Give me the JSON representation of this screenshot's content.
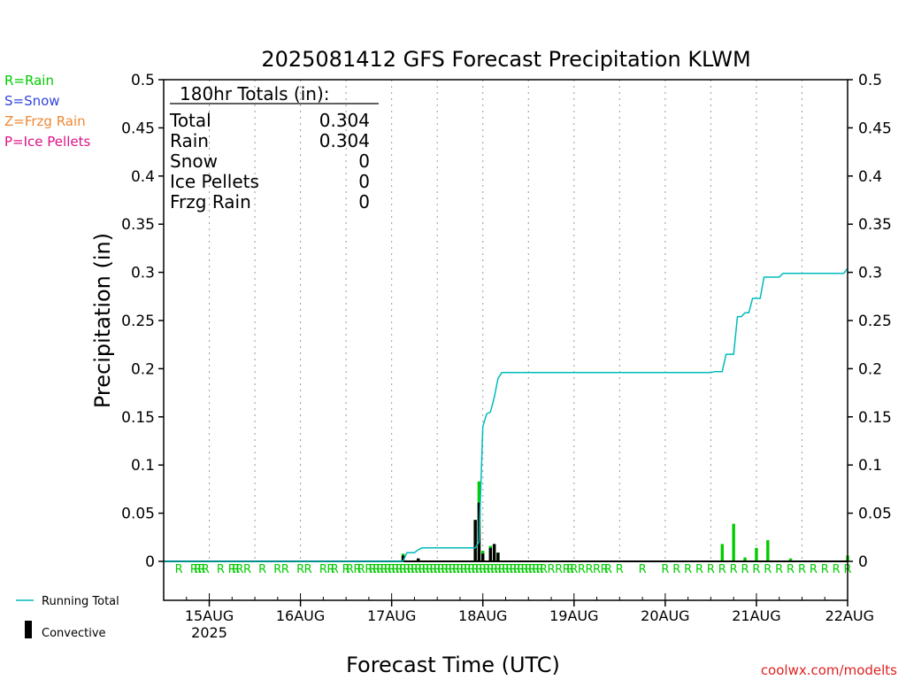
{
  "chart_data": {
    "type": "bar",
    "title": "2025081412 GFS Forecast Precipitation KLWM",
    "xlabel": "Forecast Time (UTC)",
    "ylabel": "Precipitation (in)",
    "ylim": [
      0,
      0.5
    ],
    "yticks": [
      "0",
      "0.05",
      "0.1",
      "0.15",
      "0.2",
      "0.25",
      "0.3",
      "0.35",
      "0.4",
      "0.45",
      "0.5"
    ],
    "xlim_hours": [
      0,
      180
    ],
    "xticks": [
      {
        "label": "15AUG",
        "sublabel": "2025",
        "hour": 12
      },
      {
        "label": "16AUG",
        "hour": 36
      },
      {
        "label": "17AUG",
        "hour": 60
      },
      {
        "label": "18AUG",
        "hour": 84
      },
      {
        "label": "19AUG",
        "hour": 108
      },
      {
        "label": "20AUG",
        "hour": 132
      },
      {
        "label": "21AUG",
        "hour": 156
      },
      {
        "label": "22AUG",
        "hour": 180
      }
    ],
    "ptype_legend": [
      {
        "text": "R=Rain",
        "color": "#00cc00"
      },
      {
        "text": "S=Snow",
        "color": "#3344dd"
      },
      {
        "text": "Z=Frzg Rain",
        "color": "#ee8833"
      },
      {
        "text": "P=Ice Pellets",
        "color": "#dd1188"
      }
    ],
    "series_legend": [
      {
        "name": "Running Total",
        "color": "#00bbbb",
        "kind": "line"
      },
      {
        "name": "Convective",
        "color": "#000000",
        "kind": "bar"
      }
    ],
    "totals_box": {
      "header": "180hr Totals (in):",
      "rows": [
        {
          "label": "Total",
          "value": "0.304"
        },
        {
          "label": "Rain",
          "value": "0.304"
        },
        {
          "label": "Snow",
          "value": "0"
        },
        {
          "label": "Ice Pellets",
          "value": "0"
        },
        {
          "label": "Frzg Rain",
          "value": "0"
        }
      ]
    },
    "credit": "coolwx.com/modelts",
    "ptype_marker": "R",
    "ptype_hours": [
      4,
      8,
      9,
      10,
      11,
      15,
      18,
      19,
      20,
      22,
      26,
      30,
      32,
      36,
      38,
      42,
      44,
      45,
      48,
      49,
      51,
      52,
      54,
      55,
      56,
      57,
      58,
      59,
      60,
      61,
      62,
      63,
      64,
      65,
      66,
      67,
      68,
      69,
      70,
      71,
      72,
      73,
      74,
      75,
      76,
      77,
      78,
      79,
      80,
      81,
      82,
      83,
      84,
      85,
      86,
      87,
      88,
      89,
      90,
      91,
      92,
      93,
      94,
      95,
      96,
      97,
      98,
      99,
      100,
      102,
      104,
      106,
      107,
      108,
      110,
      112,
      114,
      116,
      117,
      120,
      126,
      132,
      135,
      138,
      141,
      144,
      147,
      150,
      153,
      156,
      159,
      162,
      165,
      168,
      171,
      174,
      177,
      180
    ],
    "precip_bars": [
      {
        "hour": 63,
        "total": 0.008,
        "convective": 0.006
      },
      {
        "hour": 67,
        "total": 0.003,
        "convective": 0.003
      },
      {
        "hour": 82,
        "total": 0.043,
        "convective": 0.043
      },
      {
        "hour": 83,
        "total": 0.083,
        "convective": 0.061
      },
      {
        "hour": 84,
        "total": 0.011,
        "convective": 0.008
      },
      {
        "hour": 86,
        "total": 0.016,
        "convective": 0.014
      },
      {
        "hour": 87,
        "total": 0.018,
        "convective": 0.018
      },
      {
        "hour": 88,
        "total": 0.009,
        "convective": 0.009
      },
      {
        "hour": 147,
        "total": 0.018,
        "convective": 0
      },
      {
        "hour": 150,
        "total": 0.039,
        "convective": 0
      },
      {
        "hour": 153,
        "total": 0.004,
        "convective": 0
      },
      {
        "hour": 156,
        "total": 0.014,
        "convective": 0
      },
      {
        "hour": 159,
        "total": 0.022,
        "convective": 0
      },
      {
        "hour": 165,
        "total": 0.003,
        "convective": 0
      },
      {
        "hour": 180,
        "total": 0.006,
        "convective": 0
      }
    ],
    "running_total": {
      "x": [
        0,
        63,
        64,
        66,
        67,
        68,
        82,
        83,
        84,
        85,
        86,
        87,
        88,
        89,
        90,
        144,
        145,
        147,
        148,
        149,
        150,
        151,
        152,
        153,
        154,
        155,
        156,
        157,
        158,
        159,
        160,
        162,
        163,
        165,
        168,
        179,
        180
      ],
      "y": [
        0,
        0,
        0.009,
        0.009,
        0.012,
        0.014,
        0.014,
        0.02,
        0.14,
        0.153,
        0.155,
        0.17,
        0.19,
        0.196,
        0.196,
        0.196,
        0.197,
        0.197,
        0.215,
        0.215,
        0.215,
        0.254,
        0.254,
        0.258,
        0.258,
        0.273,
        0.273,
        0.273,
        0.295,
        0.295,
        0.295,
        0.295,
        0.299,
        0.299,
        0.299,
        0.299,
        0.304
      ]
    }
  }
}
